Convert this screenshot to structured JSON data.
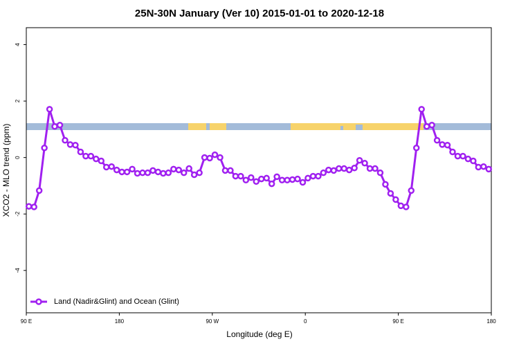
{
  "chart_data": {
    "type": "line",
    "title": "25N-30N January (Ver 10)   2015-01-01 to 2020-12-18",
    "xlabel": "Longitude (deg E)",
    "ylabel": "XCO2 - MLO trend (ppm)",
    "xlim": [
      90,
      540
    ],
    "ylim": [
      -5.5,
      4.6
    ],
    "xticks": [
      {
        "value": 90,
        "label": "90 E"
      },
      {
        "value": 180,
        "label": "180"
      },
      {
        "value": 270,
        "label": "90 W"
      },
      {
        "value": 360,
        "label": "0"
      },
      {
        "value": 450,
        "label": "90 E"
      },
      {
        "value": 540,
        "label": "180"
      }
    ],
    "yticks": [
      -4,
      -2,
      0,
      2,
      4
    ],
    "legend": "bottomleft",
    "x": [
      92.5,
      97.5,
      102.5,
      107.5,
      112.5,
      117.5,
      122.5,
      127.5,
      132.5,
      137.5,
      142.5,
      147.5,
      152.5,
      157.5,
      162.5,
      167.5,
      172.5,
      177.5,
      182.5,
      187.5,
      192.5,
      197.5,
      202.5,
      207.5,
      212.5,
      217.5,
      222.5,
      227.5,
      232.5,
      237.5,
      242.5,
      247.5,
      252.5,
      257.5,
      262.5,
      267.5,
      272.5,
      277.5,
      282.5,
      287.5,
      292.5,
      297.5,
      302.5,
      307.5,
      312.5,
      317.5,
      322.5,
      327.5,
      332.5,
      337.5,
      342.5,
      347.5,
      352.5,
      357.5,
      362.5,
      367.5,
      372.5,
      377.5,
      382.5,
      387.5,
      392.5,
      397.5,
      402.5,
      407.5,
      412.5,
      417.5,
      422.5,
      427.5,
      432.5,
      437.5,
      442.5,
      447.5,
      452.5,
      457.5,
      462.5,
      467.5,
      472.5,
      477.5,
      482.5,
      487.5,
      492.5,
      497.5,
      502.5,
      507.5,
      512.5,
      517.5,
      522.5,
      527.5,
      532.5,
      537.5
    ],
    "series": [
      {
        "name": "Land (Nadir&Glint) and Ocean (Glint)",
        "color": "#a020f0",
        "values": [
          -1.73,
          -1.75,
          -1.17,
          0.34,
          1.71,
          1.1,
          1.15,
          0.61,
          0.46,
          0.44,
          0.2,
          0.05,
          0.05,
          -0.05,
          -0.12,
          -0.34,
          -0.32,
          -0.44,
          -0.51,
          -0.51,
          -0.41,
          -0.56,
          -0.54,
          -0.54,
          -0.46,
          -0.51,
          -0.56,
          -0.54,
          -0.41,
          -0.44,
          -0.54,
          -0.39,
          -0.61,
          -0.54,
          0,
          -0.02,
          0.1,
          0,
          -0.46,
          -0.46,
          -0.66,
          -0.66,
          -0.8,
          -0.71,
          -0.85,
          -0.76,
          -0.73,
          -0.93,
          -0.68,
          -0.8,
          -0.8,
          -0.78,
          -0.76,
          -0.88,
          -0.73,
          -0.66,
          -0.66,
          -0.54,
          -0.44,
          -0.46,
          -0.39,
          -0.39,
          -0.44,
          -0.37,
          -0.1,
          -0.2,
          -0.39,
          -0.39,
          -0.54,
          -0.95,
          -1.27,
          -1.49,
          -1.71,
          -1.75,
          -1.17,
          0.34,
          1.71,
          1.1,
          1.15,
          0.61,
          0.46,
          0.44,
          0.2,
          0.05,
          0.05,
          -0.05,
          -0.12,
          -0.34,
          -0.32,
          -0.41
        ]
      }
    ]
  }
}
